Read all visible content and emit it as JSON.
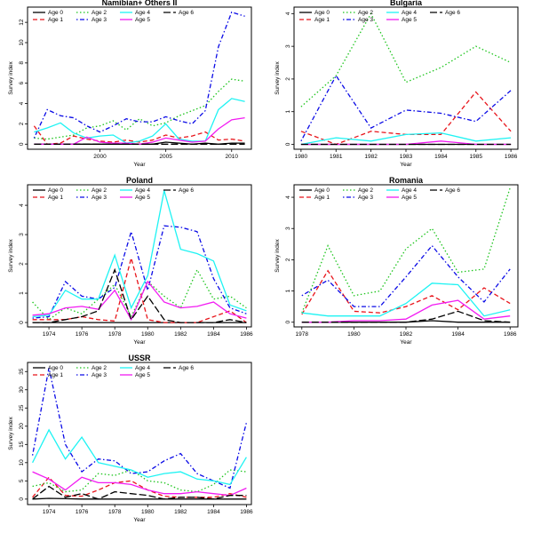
{
  "colors": [
    "#000000",
    "#e8151b",
    "#1ec51e",
    "#0a0ae6",
    "#1ef3f3",
    "#f21bf2",
    "#000000"
  ],
  "dash_styles": [
    "solid",
    "dashed",
    "dotted",
    "dotdash",
    "solid",
    "solid",
    "longdash"
  ],
  "legend_labels": [
    "Age 0",
    "Age 1",
    "Age 2",
    "Age 3",
    "Age 4",
    "Age 5",
    "Age 6"
  ],
  "chart_data": [
    {
      "type": "line",
      "title": "Namibian+ Others II",
      "xlabel": "Year",
      "ylabel": "Survey index",
      "xlim": [
        1994.5,
        2011.5
      ],
      "ylim": [
        -0.5,
        13.5
      ],
      "xticks": [
        2000,
        2005,
        2010
      ],
      "yticks": [
        0,
        2,
        4,
        6,
        8,
        10,
        12
      ],
      "x": [
        1995,
        1996,
        1997,
        1998,
        1999,
        2000,
        2001,
        2002,
        2003,
        2004,
        2005,
        2006,
        2007,
        2008,
        2009,
        2010,
        2011
      ],
      "series": [
        {
          "values": [
            0.0,
            0.0,
            0.0,
            0.0,
            0.0,
            0.0,
            0.0,
            0.0,
            0.0,
            0.0,
            0.2,
            0.1,
            0.0,
            0.1,
            0.0,
            0.1,
            0.1
          ]
        },
        {
          "values": [
            1.8,
            0.0,
            0.1,
            0.8,
            0.5,
            0.3,
            0.2,
            0.4,
            0.2,
            0.4,
            0.9,
            0.6,
            0.8,
            1.2,
            0.4,
            0.5,
            0.3
          ]
        },
        {
          "values": [
            0.6,
            0.5,
            0.7,
            0.9,
            1.6,
            1.8,
            2.3,
            1.4,
            2.5,
            1.8,
            2.1,
            2.8,
            3.3,
            3.8,
            5.2,
            6.4,
            6.2
          ]
        },
        {
          "values": [
            0.6,
            3.4,
            2.8,
            2.6,
            1.8,
            1.2,
            1.8,
            2.5,
            2.2,
            2.2,
            2.7,
            2.3,
            2.0,
            3.3,
            9.6,
            13.0,
            12.6
          ]
        },
        {
          "values": [
            1.2,
            1.6,
            2.1,
            1.1,
            0.6,
            0.8,
            0.9,
            0.1,
            0.3,
            0.8,
            2.0,
            0.5,
            0.3,
            0.3,
            3.4,
            4.5,
            4.2
          ]
        },
        {
          "values": [
            0.0,
            0.0,
            0.0,
            0.0,
            0.7,
            0.2,
            0.1,
            0.1,
            0.0,
            0.2,
            0.6,
            0.4,
            0.2,
            0.3,
            1.5,
            2.4,
            2.6
          ]
        },
        {
          "values": [
            0.0,
            0.0,
            0.0,
            0.0,
            0.0,
            0.0,
            0.0,
            0.0,
            0.0,
            0.0,
            0.0,
            0.0,
            0.0,
            0.0,
            0.0,
            0.0,
            0.0
          ]
        }
      ]
    },
    {
      "type": "line",
      "title": "Bulgaria",
      "xlabel": "Year",
      "ylabel": "Survey index",
      "xlim": [
        1979.8,
        1986.2
      ],
      "ylim": [
        -0.15,
        4.2
      ],
      "xticks": [
        1980,
        1981,
        1982,
        1983,
        1984,
        1985,
        1986
      ],
      "yticks": [
        0,
        1,
        2,
        3,
        4
      ],
      "x": [
        1980,
        1981,
        1982,
        1983,
        1984,
        1985,
        1986
      ],
      "series": [
        {
          "values": [
            0.0,
            0.0,
            0.0,
            0.0,
            0.0,
            0.0,
            0.0
          ]
        },
        {
          "values": [
            0.4,
            0.0,
            0.4,
            0.3,
            0.3,
            1.6,
            0.4
          ]
        },
        {
          "values": [
            1.15,
            2.1,
            4.0,
            1.9,
            2.35,
            3.0,
            2.5
          ]
        },
        {
          "values": [
            0.1,
            2.1,
            0.5,
            1.05,
            0.95,
            0.7,
            1.65
          ]
        },
        {
          "values": [
            0.0,
            0.2,
            0.1,
            0.3,
            0.35,
            0.1,
            0.2
          ]
        },
        {
          "values": [
            0.0,
            0.0,
            0.0,
            0.0,
            0.1,
            0.0,
            0.0
          ]
        },
        {
          "values": [
            0.0,
            0.0,
            0.0,
            0.0,
            0.0,
            0.0,
            0.0
          ]
        }
      ]
    },
    {
      "type": "line",
      "title": "Poland",
      "xlabel": "Year",
      "ylabel": "Survey index",
      "xlim": [
        1972.7,
        1986.3
      ],
      "ylim": [
        -0.15,
        4.7
      ],
      "xticks": [
        1974,
        1976,
        1978,
        1980,
        1982,
        1984,
        1986
      ],
      "yticks": [
        0,
        1,
        2,
        3,
        4
      ],
      "x": [
        1973,
        1974,
        1975,
        1976,
        1977,
        1978,
        1979,
        1980,
        1981,
        1982,
        1983,
        1984,
        1985,
        1986
      ],
      "series": [
        {
          "values": [
            0.0,
            0.0,
            0.0,
            0.0,
            0.0,
            0.0,
            0.0,
            0.0,
            0.0,
            0.0,
            0.0,
            0.0,
            0.0,
            0.0
          ]
        },
        {
          "values": [
            0.1,
            0.1,
            0.1,
            0.2,
            0.1,
            0.05,
            2.2,
            0.1,
            0.0,
            0.0,
            0.0,
            0.2,
            0.4,
            0.0
          ]
        },
        {
          "values": [
            0.7,
            0.1,
            0.5,
            0.3,
            0.8,
            1.3,
            0.2,
            1.4,
            0.9,
            0.5,
            1.8,
            0.8,
            0.9,
            0.5
          ]
        },
        {
          "values": [
            0.15,
            0.2,
            1.4,
            0.9,
            0.8,
            1.2,
            3.1,
            1.1,
            3.3,
            3.25,
            3.1,
            1.5,
            0.5,
            0.3
          ]
        },
        {
          "values": [
            0.2,
            0.25,
            1.1,
            0.8,
            0.8,
            2.3,
            0.5,
            1.6,
            4.5,
            2.5,
            2.35,
            2.1,
            0.6,
            0.4
          ]
        },
        {
          "values": [
            0.25,
            0.3,
            0.5,
            0.55,
            0.45,
            1.1,
            0.1,
            1.4,
            0.7,
            0.5,
            0.55,
            0.7,
            0.3,
            0.15
          ]
        },
        {
          "values": [
            0.0,
            0.0,
            0.1,
            0.2,
            0.4,
            1.8,
            0.1,
            0.9,
            0.1,
            0.0,
            0.0,
            0.0,
            0.1,
            0.0
          ]
        }
      ]
    },
    {
      "type": "line",
      "title": "Romania",
      "xlabel": "Year",
      "ylabel": "Survey index",
      "xlim": [
        1977.7,
        1986.3
      ],
      "ylim": [
        -0.15,
        4.4
      ],
      "xticks": [
        1978,
        1980,
        1982,
        1984,
        1986
      ],
      "yticks": [
        0,
        1,
        2,
        3,
        4
      ],
      "x": [
        1978,
        1979,
        1980,
        1981,
        1982,
        1983,
        1984,
        1985,
        1986
      ],
      "series": [
        {
          "values": [
            0.0,
            0.0,
            0.0,
            0.0,
            0.0,
            0.05,
            0.0,
            0.0,
            0.0
          ]
        },
        {
          "values": [
            0.25,
            1.65,
            0.35,
            0.3,
            0.5,
            0.85,
            0.4,
            1.1,
            0.6
          ]
        },
        {
          "values": [
            0.3,
            2.45,
            0.85,
            1.0,
            2.35,
            3.0,
            1.6,
            1.7,
            4.3
          ]
        },
        {
          "values": [
            0.85,
            1.35,
            0.5,
            0.5,
            1.45,
            2.45,
            1.45,
            0.65,
            1.7
          ]
        },
        {
          "values": [
            0.3,
            0.2,
            0.2,
            0.2,
            0.6,
            1.25,
            1.2,
            0.2,
            0.4
          ]
        },
        {
          "values": [
            0.0,
            0.0,
            0.05,
            0.05,
            0.1,
            0.55,
            0.7,
            0.1,
            0.2
          ]
        },
        {
          "values": [
            0.0,
            0.0,
            0.0,
            0.0,
            0.0,
            0.1,
            0.35,
            0.05,
            0.0
          ]
        }
      ]
    },
    {
      "type": "line",
      "title": "USSR",
      "xlabel": "Year",
      "ylabel": "Survey index",
      "xlim": [
        1972.7,
        1986.3
      ],
      "ylim": [
        -1.5,
        37.5
      ],
      "xticks": [
        1974,
        1976,
        1978,
        1980,
        1982,
        1984,
        1986
      ],
      "yticks": [
        0,
        5,
        10,
        15,
        20,
        25,
        30,
        35
      ],
      "x": [
        1973,
        1974,
        1975,
        1976,
        1977,
        1978,
        1979,
        1980,
        1981,
        1982,
        1983,
        1984,
        1985,
        1986
      ],
      "series": [
        {
          "values": [
            0.0,
            0.2,
            0.1,
            0.0,
            0.0,
            0.0,
            0.0,
            0.0,
            0.0,
            0.0,
            0.0,
            0.0,
            0.0,
            0.0
          ]
        },
        {
          "values": [
            0.5,
            6.0,
            1.0,
            0.8,
            2.5,
            4.5,
            5.0,
            2.5,
            0.8,
            0.5,
            0.5,
            0.5,
            1.5,
            0.5
          ]
        },
        {
          "values": [
            3.5,
            4.5,
            2.0,
            2.5,
            7.0,
            6.5,
            8.0,
            5.0,
            4.5,
            2.5,
            2.0,
            4.0,
            8.0,
            7.5
          ]
        },
        {
          "values": [
            12.0,
            36.0,
            15.0,
            7.5,
            11.0,
            10.5,
            7.0,
            7.5,
            10.5,
            12.5,
            7.0,
            5.0,
            3.0,
            21.0
          ]
        },
        {
          "values": [
            10.0,
            19.0,
            11.0,
            17.0,
            10.0,
            9.0,
            8.0,
            6.0,
            7.0,
            7.5,
            5.5,
            5.0,
            4.0,
            11.5
          ]
        },
        {
          "values": [
            7.5,
            5.5,
            2.5,
            6.0,
            4.5,
            4.5,
            4.0,
            2.5,
            1.5,
            1.5,
            2.0,
            1.5,
            1.0,
            3.0
          ]
        },
        {
          "values": [
            0.0,
            3.5,
            0.5,
            1.5,
            0.0,
            2.0,
            1.5,
            1.0,
            0.0,
            0.5,
            0.5,
            0.0,
            1.0,
            1.0
          ]
        }
      ]
    }
  ]
}
